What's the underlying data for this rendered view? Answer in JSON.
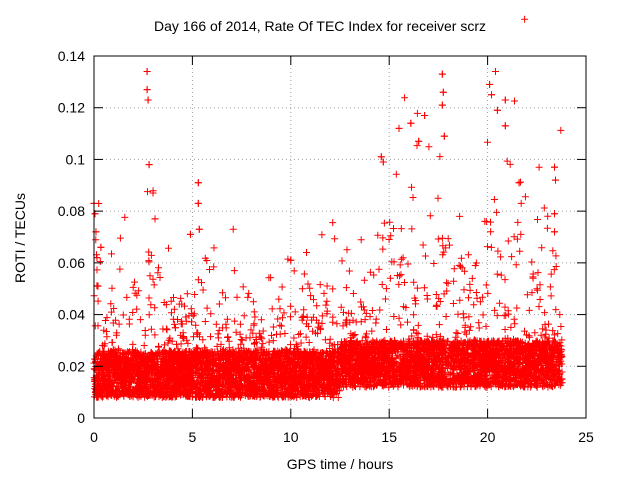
{
  "chart_data": {
    "type": "scatter",
    "title": "Day 166 of 2014, Rate Of TEC Index for receiver scrz",
    "xlabel": "GPS time / hours",
    "ylabel": "ROTI / TECUs",
    "xlim": [
      0,
      25
    ],
    "ylim": [
      0,
      0.14
    ],
    "xticks": [
      "0",
      "5",
      "10",
      "15",
      "20",
      "25"
    ],
    "yticks": [
      "0",
      "0.02",
      "0.04",
      "0.06",
      "0.08",
      "0.1",
      "0.12",
      "0.14"
    ],
    "grid": true,
    "marker": "+",
    "marker_color": "#ff0000",
    "series": [
      {
        "name": "ROTI",
        "description": "dense scatter of ROTI samples from 0 to ~23.8 h; baseline ~0.01-0.03 TECU/min with enhanced activity after ~14.5 h",
        "highlight_points": [
          {
            "x": 0.0,
            "y": 0.083
          },
          {
            "x": 0.05,
            "y": 0.079
          },
          {
            "x": 0.1,
            "y": 0.072
          },
          {
            "x": 0.15,
            "y": 0.062
          },
          {
            "x": 0.2,
            "y": 0.051
          },
          {
            "x": 0.35,
            "y": 0.066
          },
          {
            "x": 2.7,
            "y": 0.134
          },
          {
            "x": 2.7,
            "y": 0.127
          },
          {
            "x": 2.75,
            "y": 0.123
          },
          {
            "x": 2.8,
            "y": 0.098
          },
          {
            "x": 3.0,
            "y": 0.087
          },
          {
            "x": 3.1,
            "y": 0.077
          },
          {
            "x": 4.9,
            "y": 0.071
          },
          {
            "x": 5.3,
            "y": 0.091
          },
          {
            "x": 5.3,
            "y": 0.083
          },
          {
            "x": 5.35,
            "y": 0.073
          },
          {
            "x": 10.0,
            "y": 0.061
          },
          {
            "x": 10.8,
            "y": 0.064
          },
          {
            "x": 14.6,
            "y": 0.101
          },
          {
            "x": 14.7,
            "y": 0.099
          },
          {
            "x": 15.5,
            "y": 0.112
          },
          {
            "x": 16.1,
            "y": 0.114
          },
          {
            "x": 16.5,
            "y": 0.107
          },
          {
            "x": 16.8,
            "y": 0.117
          },
          {
            "x": 17.7,
            "y": 0.133
          },
          {
            "x": 17.75,
            "y": 0.126
          },
          {
            "x": 17.7,
            "y": 0.121
          },
          {
            "x": 17.8,
            "y": 0.109
          },
          {
            "x": 20.1,
            "y": 0.129
          },
          {
            "x": 20.2,
            "y": 0.125
          },
          {
            "x": 20.4,
            "y": 0.134
          },
          {
            "x": 20.5,
            "y": 0.119
          },
          {
            "x": 20.9,
            "y": 0.123
          },
          {
            "x": 20.9,
            "y": 0.113
          },
          {
            "x": 21.6,
            "y": 0.091
          },
          {
            "x": 23.4,
            "y": 0.097
          },
          {
            "x": 23.45,
            "y": 0.092
          },
          {
            "x": 23.4,
            "y": 0.079
          },
          {
            "x": 23.4,
            "y": 0.072
          }
        ]
      }
    ]
  }
}
